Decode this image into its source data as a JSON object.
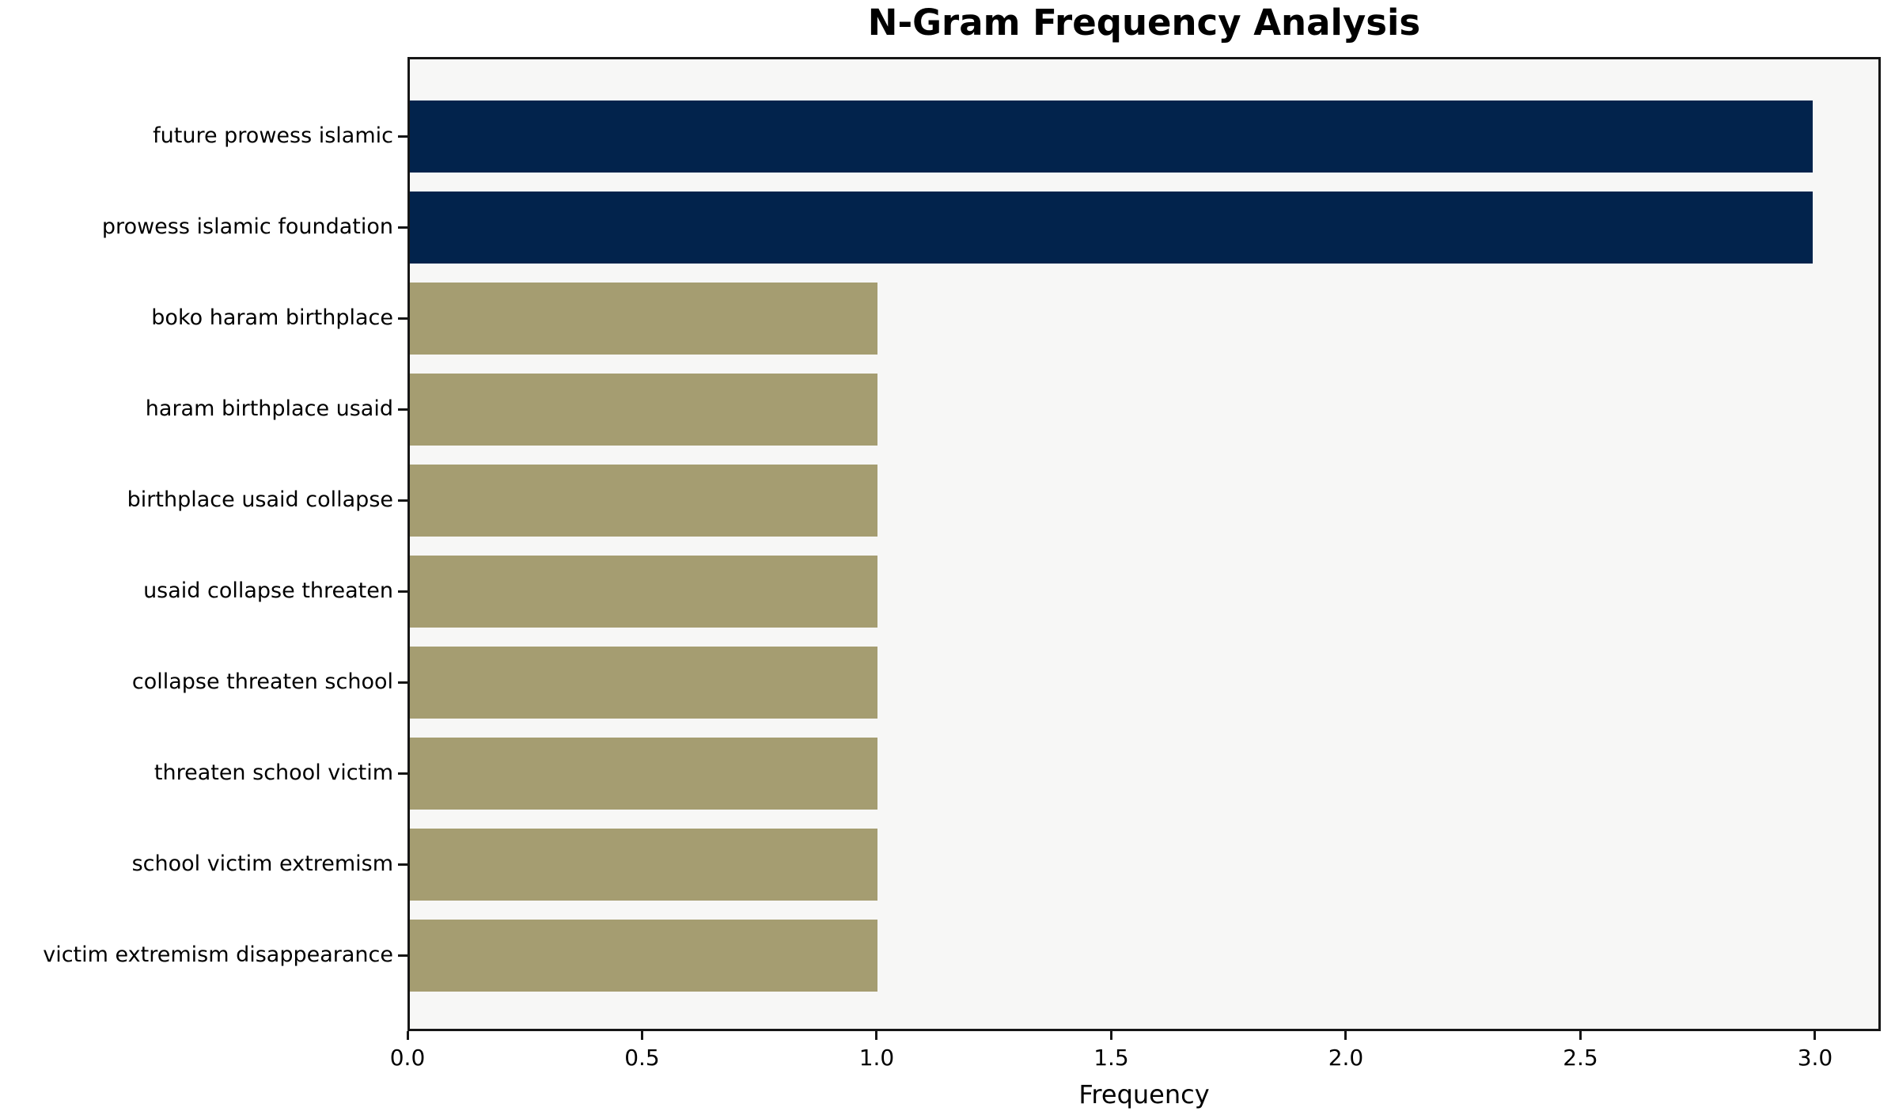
{
  "chart_data": {
    "type": "bar",
    "orientation": "horizontal",
    "title": "N-Gram Frequency Analysis",
    "xlabel": "Frequency",
    "ylabel": "",
    "categories": [
      "future prowess islamic",
      "prowess islamic foundation",
      "boko haram birthplace",
      "haram birthplace usaid",
      "birthplace usaid collapse",
      "usaid collapse threaten",
      "collapse threaten school",
      "threaten school victim",
      "school victim extremism",
      "victim extremism disappearance"
    ],
    "values": [
      3,
      3,
      1,
      1,
      1,
      1,
      1,
      1,
      1,
      1
    ],
    "bar_colors": [
      "#02234C",
      "#02234C",
      "#A59D71",
      "#A59D71",
      "#A59D71",
      "#A59D71",
      "#A59D71",
      "#A59D71",
      "#A59D71",
      "#A59D71"
    ],
    "xlim": [
      0,
      3.14
    ],
    "xticks": [
      0.0,
      0.5,
      1.0,
      1.5,
      2.0,
      2.5,
      3.0
    ],
    "xtick_labels": [
      "0.0",
      "0.5",
      "1.0",
      "1.5",
      "2.0",
      "2.5",
      "3.0"
    ],
    "grid": false,
    "legend_position": "none",
    "colors": {
      "highlight_bar": "#02234C",
      "base_bar": "#A59D71",
      "plot_background": "#F7F7F6",
      "figure_background": "#FFFFFF",
      "frame": "#161616",
      "text": "#000000"
    }
  }
}
